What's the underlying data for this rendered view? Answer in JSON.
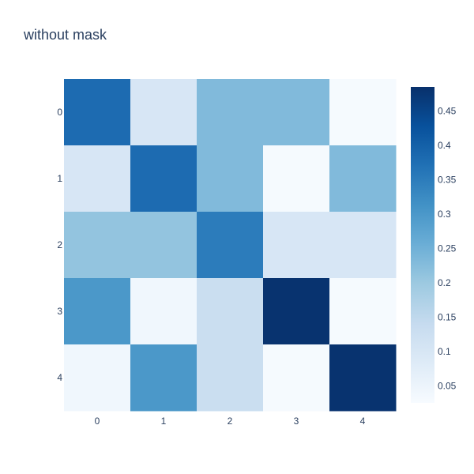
{
  "chart_data": {
    "type": "heatmap",
    "title": "without mask",
    "xlabel": "",
    "ylabel": "",
    "x_categories": [
      "0",
      "1",
      "2",
      "3",
      "4"
    ],
    "y_categories": [
      "0",
      "1",
      "2",
      "3",
      "4"
    ],
    "z": [
      [
        0.38,
        0.1,
        0.23,
        0.23,
        0.03
      ],
      [
        0.1,
        0.38,
        0.23,
        0.03,
        0.23
      ],
      [
        0.21,
        0.21,
        0.35,
        0.1,
        0.1
      ],
      [
        0.3,
        0.04,
        0.13,
        0.48,
        0.03
      ],
      [
        0.04,
        0.3,
        0.13,
        0.03,
        0.48
      ]
    ],
    "zmin": 0.025,
    "zmax": 0.485,
    "colorscale": "Blues",
    "colorscale_colors": [
      "#f7fbff",
      "#deebf7",
      "#c6dbef",
      "#9ecae1",
      "#6baed6",
      "#4292c6",
      "#2171b5",
      "#08519c",
      "#08306b"
    ],
    "colorbar": {
      "ticks": [
        0.05,
        0.1,
        0.15,
        0.2,
        0.25,
        0.3,
        0.35,
        0.4,
        0.45
      ],
      "tick_labels": [
        "0.05",
        "0.1",
        "0.15",
        "0.2",
        "0.25",
        "0.3",
        "0.35",
        "0.4",
        "0.45"
      ]
    },
    "y_axis_reversed": true,
    "grid": false,
    "legend": "right"
  }
}
